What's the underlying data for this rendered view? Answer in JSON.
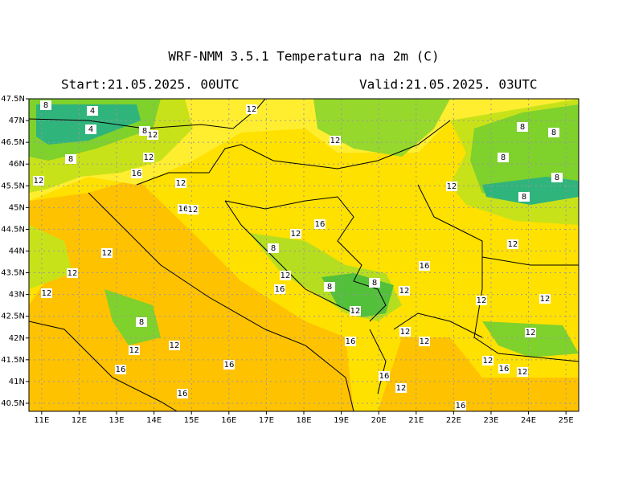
{
  "header": {
    "title": "WRF-NMM 3.5.1   Temperatura na 2m (C)",
    "start": "Start:21.05.2025.  00UTC",
    "valid": "Valid:21.05.2025.  03UTC"
  },
  "map": {
    "xlim": [
      10.66,
      25.34
    ],
    "ylim": [
      40.315,
      47.5
    ],
    "xticks": [
      {
        "value": 11,
        "label": "11E"
      },
      {
        "value": 12,
        "label": "12E"
      },
      {
        "value": 13,
        "label": "13E"
      },
      {
        "value": 14,
        "label": "14E"
      },
      {
        "value": 15,
        "label": "15E"
      },
      {
        "value": 16,
        "label": "16E"
      },
      {
        "value": 17,
        "label": "17E"
      },
      {
        "value": 18,
        "label": "18E"
      },
      {
        "value": 19,
        "label": "19E"
      },
      {
        "value": 20,
        "label": "20E"
      },
      {
        "value": 21,
        "label": "21E"
      },
      {
        "value": 22,
        "label": "22E"
      },
      {
        "value": 23,
        "label": "23E"
      },
      {
        "value": 24,
        "label": "24E"
      },
      {
        "value": 25,
        "label": "25E"
      }
    ],
    "yticks": [
      {
        "value": 40.5,
        "label": "40.5N"
      },
      {
        "value": 41,
        "label": "41N"
      },
      {
        "value": 41.5,
        "label": "41.5N"
      },
      {
        "value": 42,
        "label": "42N"
      },
      {
        "value": 42.5,
        "label": "42.5N"
      },
      {
        "value": 43,
        "label": "43N"
      },
      {
        "value": 43.5,
        "label": "43.5N"
      },
      {
        "value": 44,
        "label": "44N"
      },
      {
        "value": 44.5,
        "label": "44.5N"
      },
      {
        "value": 45,
        "label": "45N"
      },
      {
        "value": 45.5,
        "label": "45.5N"
      },
      {
        "value": 46,
        "label": "46N"
      },
      {
        "value": 46.5,
        "label": "46.5N"
      },
      {
        "value": 47,
        "label": "47N"
      },
      {
        "value": 47.5,
        "label": "47.5N"
      }
    ],
    "grid": true,
    "contour_labels": [
      8,
      4,
      4,
      8,
      12,
      8,
      12,
      12,
      12,
      16,
      12,
      12,
      16,
      12,
      16,
      12,
      8,
      12,
      12,
      12,
      16,
      12,
      8,
      8,
      8,
      8,
      8,
      12,
      8,
      8,
      16,
      12,
      12,
      12,
      12,
      8,
      12,
      12,
      12,
      12,
      12,
      12,
      16,
      16,
      16,
      12,
      16,
      12,
      16,
      12,
      16,
      16
    ]
  }
}
